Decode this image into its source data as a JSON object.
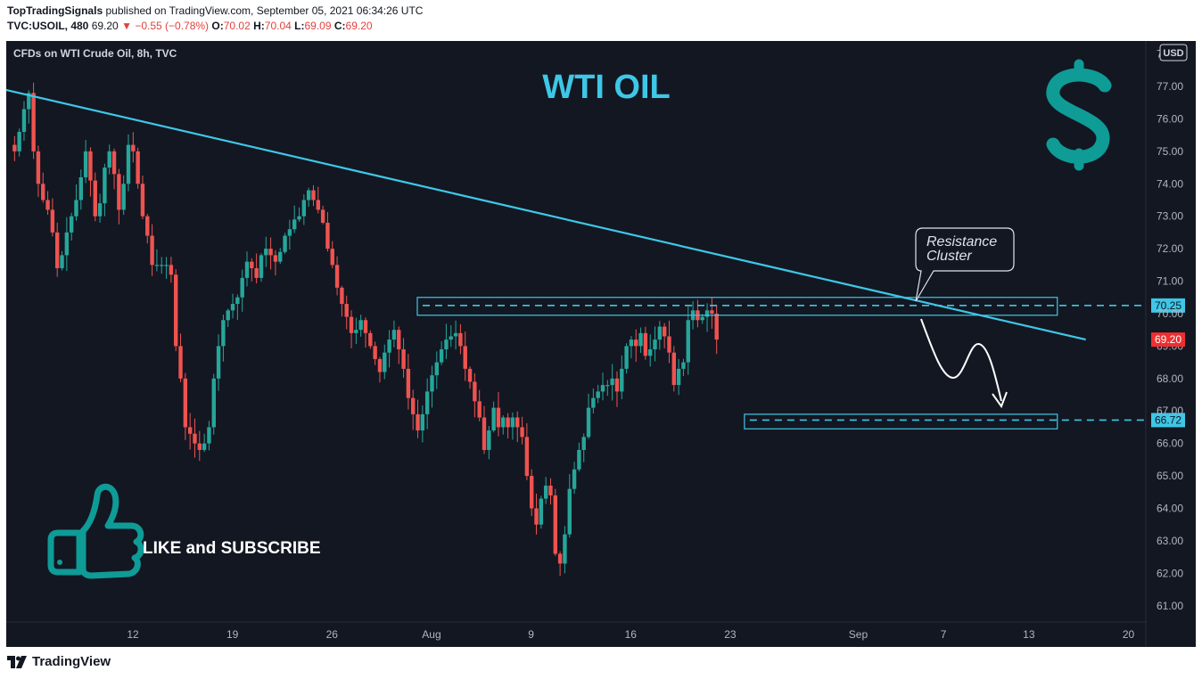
{
  "header": {
    "publisher": "TopTradingSignals",
    "published_text": "published on TradingView.com, September 05, 2021 06:34:26 UTC",
    "symbol": "TVC:USOIL, 480",
    "last": "69.20",
    "change": "−0.55 (−0.78%)",
    "o_label": "O:",
    "o_value": "70.02",
    "h_label": "H:",
    "h_value": "70.04",
    "l_label": "L:",
    "l_value": "69.09",
    "c_label": "C:",
    "c_value": "69.20"
  },
  "footer": {
    "brand": "TradingView"
  },
  "chart_data": {
    "type": "candlestick",
    "title": "WTI OIL",
    "subtitle": "CFDs on WTI Crude Oil, 8h, TVC",
    "currency": "USD",
    "ylim": [
      60.5,
      78.4
    ],
    "y_ticks": [
      "78.00",
      "77.00",
      "76.00",
      "75.00",
      "74.00",
      "73.00",
      "72.00",
      "71.00",
      "70.00",
      "69.00",
      "68.00",
      "67.00",
      "66.00",
      "65.00",
      "64.00",
      "63.00",
      "62.00",
      "61.00"
    ],
    "x_ticks": [
      {
        "label": "12",
        "date": "2021-07-12"
      },
      {
        "label": "19",
        "date": "2021-07-19"
      },
      {
        "label": "26",
        "date": "2021-07-26"
      },
      {
        "label": "Aug",
        "date": "2021-08-02"
      },
      {
        "label": "9",
        "date": "2021-08-09"
      },
      {
        "label": "16",
        "date": "2021-08-16"
      },
      {
        "label": "23",
        "date": "2021-08-23"
      },
      {
        "label": "Sep",
        "date": "2021-09-01"
      },
      {
        "label": "7",
        "date": "2021-09-07"
      },
      {
        "label": "13",
        "date": "2021-09-13"
      },
      {
        "label": "20",
        "date": "2021-09-20"
      }
    ],
    "close_path": [
      75.2,
      75.0,
      75.6,
      76.3,
      76.8,
      75.0,
      74.0,
      73.5,
      73.2,
      72.5,
      71.4,
      71.8,
      72.5,
      73.0,
      73.5,
      74.2,
      75.0,
      74.1,
      73.0,
      73.4,
      74.5,
      75.0,
      74.3,
      73.2,
      74.0,
      75.2,
      75.0,
      74.0,
      73.0,
      72.4,
      71.5,
      71.5,
      71.5,
      71.5,
      71.2,
      69.0,
      68.0,
      66.5,
      66.3,
      66.0,
      65.8,
      66.0,
      66.5,
      68.0,
      69.0,
      69.8,
      70.1,
      70.3,
      70.5,
      71.1,
      71.6,
      71.4,
      71.1,
      71.8,
      72.0,
      71.8,
      71.6,
      71.9,
      72.4,
      72.6,
      72.9,
      73.0,
      73.5,
      73.8,
      73.5,
      73.2,
      72.8,
      72.0,
      71.5,
      70.8,
      70.3,
      69.9,
      69.4,
      69.5,
      69.8,
      69.4,
      69.0,
      68.6,
      68.2,
      68.8,
      69.2,
      69.5,
      68.9,
      68.3,
      67.4,
      66.9,
      66.4,
      66.9,
      67.6,
      68.1,
      68.5,
      68.9,
      69.2,
      69.3,
      69.4,
      69.0,
      68.3,
      67.9,
      67.3,
      66.8,
      65.8,
      66.4,
      67.1,
      66.5,
      66.8,
      66.5,
      66.8,
      66.5,
      66.2,
      65.0,
      64.0,
      63.5,
      64.3,
      64.7,
      64.4,
      62.6,
      62.3,
      63.2,
      64.6,
      65.2,
      65.8,
      66.2,
      67.1,
      67.4,
      67.6,
      67.8,
      67.8,
      68.0,
      67.6,
      68.3,
      69.0,
      69.2,
      69.0,
      69.4,
      68.7,
      68.9,
      69.2,
      69.6,
      69.3,
      68.8,
      67.8,
      68.3,
      68.5,
      69.8,
      70.1,
      69.8,
      69.9,
      70.1,
      70.0,
      69.2
    ],
    "trendline": {
      "start": {
        "date": "2021-07-02",
        "value": 77.0
      },
      "end": {
        "date": "2021-09-17",
        "value": 69.2
      }
    },
    "zones": [
      {
        "name": "resistance",
        "top": 70.5,
        "bottom": 69.95,
        "start": "2021-08-01",
        "end": "2021-09-15",
        "level": 70.25,
        "label": "70.25"
      },
      {
        "name": "support",
        "top": 66.9,
        "bottom": 66.45,
        "start": "2021-08-24",
        "end": "2021-09-15",
        "level": 66.72,
        "label": "66.72"
      }
    ],
    "last_price": {
      "value": 69.2,
      "label": "69.20"
    },
    "annotation": {
      "text_line1": "Resistance",
      "text_line2": "Cluster"
    },
    "promo_text": "LIKE and SUBSCRIBE",
    "colors": {
      "background": "#131722",
      "up": "#26a69a",
      "down": "#ef5350",
      "accent": "#3ec7e6",
      "teal": "#0f9b96",
      "price_label": "#ef2f2f"
    }
  }
}
